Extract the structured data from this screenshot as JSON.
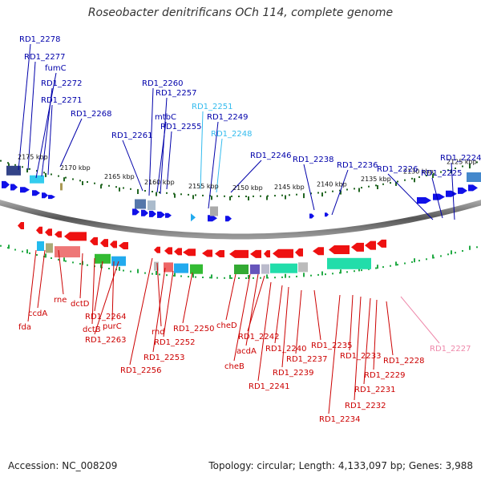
{
  "title": "Roseobacter denitrificans OCh 114, complete genome",
  "footer": {
    "accession": "Accession: NC_008209",
    "summary": "Topology: circular; Length: 4,133,097 bp; Genes: 3,988"
  },
  "scale_labels": [
    "2175 kbp",
    "2170 kbp",
    "2165 kbp",
    "2160 kbp",
    "2155 kbp",
    "2150 kbp",
    "2145 kbp",
    "2140 kbp",
    "2135 kbp",
    "2130 kbp",
    "2125 kbp"
  ],
  "top_labels": [
    "RD1_2278",
    "RD1_2277",
    "fumC",
    "RD1_2272",
    "RD1_2271",
    "RD1_2268",
    "RD1_2260",
    "RD1_2257",
    "mtbC",
    "RD1_2261",
    "RD1_2255",
    "RD1_2251",
    "RD1_2249",
    "RD1_2248",
    "RD1_2246",
    "RD1_2238",
    "RD1_2236",
    "RD1_2226",
    "RD1_2225",
    "RD1_2224"
  ],
  "bottom_labels": [
    "fda",
    "ccdA",
    "rne",
    "dctD",
    "dctB",
    "RD1_2264",
    "purC",
    "RD1_2263",
    "rnd",
    "RD1_2256",
    "RD1_2253",
    "RD1_2252",
    "RD1_2250",
    "cheD",
    "cheB",
    "acdA",
    "RD1_2242",
    "RD1_2241",
    "RD1_2240",
    "RD1_2239",
    "RD1_2237",
    "RD1_2235",
    "RD1_2234",
    "RD1_2233",
    "RD1_2232",
    "RD1_2231",
    "RD1_2229",
    "RD1_2228",
    "RD1_2227"
  ],
  "colors": {
    "forward_gene": "#1010e8",
    "reverse_gene": "#ee1111",
    "forward_label": "#0000aa",
    "reverse_label": "#cc0000",
    "rna_forward_label": "#33bbee",
    "rna_reverse_label": "#ee88aa",
    "forward_tick": "#226622",
    "reverse_tick": "#22aa44",
    "backbone": "#666666"
  }
}
